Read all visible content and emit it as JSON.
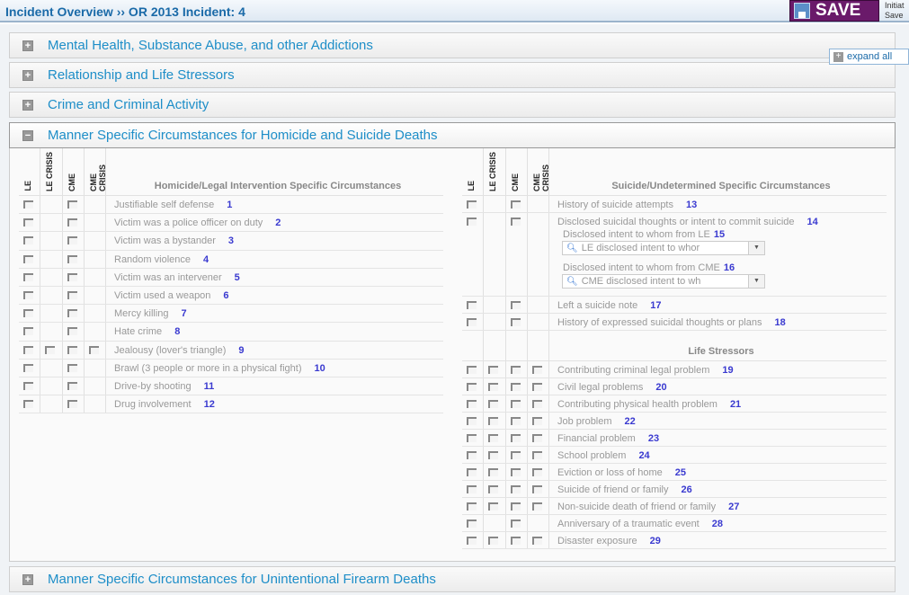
{
  "header": {
    "breadcrumb": "Incident Overview ›› OR 2013 Incident: 4",
    "save_label": "SAVE",
    "side_text": [
      "Initiat",
      "Save"
    ]
  },
  "expand_all": "expand all",
  "panels": [
    {
      "title": "Mental Health, Substance Abuse, and other Addictions",
      "state": "collapsed"
    },
    {
      "title": "Relationship and Life Stressors",
      "state": "collapsed"
    },
    {
      "title": "Crime and Criminal Activity",
      "state": "collapsed"
    },
    {
      "title": "Manner Specific Circumstances for Homicide and Suicide Deaths",
      "state": "expanded"
    },
    {
      "title": "Manner Specific Circumstances for Unintentional Firearm Deaths",
      "state": "collapsed"
    }
  ],
  "columns": [
    "LE",
    "LE CRISIS",
    "CME",
    "CME CRISIS"
  ],
  "homicide": {
    "title": "Homicide/Legal Intervention Specific Circumstances",
    "rows": [
      {
        "label": "Justifiable self defense",
        "num": "1",
        "boxes": [
          1,
          0,
          1,
          0
        ]
      },
      {
        "label": "Victim was a police officer on duty",
        "num": "2",
        "boxes": [
          1,
          0,
          1,
          0
        ]
      },
      {
        "label": "Victim was a bystander",
        "num": "3",
        "boxes": [
          1,
          0,
          1,
          0
        ]
      },
      {
        "label": "Random violence",
        "num": "4",
        "boxes": [
          1,
          0,
          1,
          0
        ]
      },
      {
        "label": "Victim was an intervener",
        "num": "5",
        "boxes": [
          1,
          0,
          1,
          0
        ]
      },
      {
        "label": "Victim used a weapon",
        "num": "6",
        "boxes": [
          1,
          0,
          1,
          0
        ]
      },
      {
        "label": "Mercy killing",
        "num": "7",
        "boxes": [
          1,
          0,
          1,
          0
        ]
      },
      {
        "label": "Hate crime",
        "num": "8",
        "boxes": [
          1,
          0,
          1,
          0
        ]
      },
      {
        "label": "Jealousy (lover's triangle)",
        "num": "9",
        "boxes": [
          1,
          1,
          1,
          1
        ]
      },
      {
        "label": "Brawl (3 people or more in a physical fight)",
        "num": "10",
        "boxes": [
          1,
          0,
          1,
          0
        ]
      },
      {
        "label": "Drive-by shooting",
        "num": "11",
        "boxes": [
          1,
          0,
          1,
          0
        ]
      },
      {
        "label": "Drug involvement",
        "num": "12",
        "boxes": [
          1,
          0,
          1,
          0
        ]
      }
    ]
  },
  "suicide": {
    "title": "Suicide/Undetermined Specific Circumstances",
    "rows": [
      {
        "label": "History of suicide attempts",
        "num": "13",
        "boxes": [
          1,
          0,
          1,
          0
        ]
      },
      {
        "label": "Disclosed suicidal thoughts or intent to commit suicide",
        "num": "14",
        "boxes": [
          1,
          0,
          1,
          0
        ],
        "subfields": [
          {
            "label": "Disclosed intent to whom from LE",
            "num": "15",
            "placeholder": "LE disclosed intent to whor"
          },
          {
            "label": "Disclosed intent to whom from CME",
            "num": "16",
            "placeholder": "CME disclosed intent to wh"
          }
        ]
      },
      {
        "label": "Left a suicide note",
        "num": "17",
        "boxes": [
          1,
          0,
          1,
          0
        ]
      },
      {
        "label": "History of expressed suicidal thoughts or plans",
        "num": "18",
        "boxes": [
          1,
          0,
          1,
          0
        ]
      }
    ]
  },
  "life_stressors": {
    "title": "Life Stressors",
    "rows": [
      {
        "label": "Contributing criminal legal problem",
        "num": "19",
        "boxes": [
          1,
          1,
          1,
          1
        ]
      },
      {
        "label": "Civil legal problems",
        "num": "20",
        "boxes": [
          1,
          1,
          1,
          1
        ]
      },
      {
        "label": "Contributing physical health problem",
        "num": "21",
        "boxes": [
          1,
          1,
          1,
          1
        ]
      },
      {
        "label": "Job problem",
        "num": "22",
        "boxes": [
          1,
          1,
          1,
          1
        ]
      },
      {
        "label": "Financial problem",
        "num": "23",
        "boxes": [
          1,
          1,
          1,
          1
        ]
      },
      {
        "label": "School problem",
        "num": "24",
        "boxes": [
          1,
          1,
          1,
          1
        ]
      },
      {
        "label": "Eviction or loss of home",
        "num": "25",
        "boxes": [
          1,
          1,
          1,
          1
        ]
      },
      {
        "label": "Suicide of friend or family",
        "num": "26",
        "boxes": [
          1,
          1,
          1,
          1
        ]
      },
      {
        "label": "Non-suicide death of friend or family",
        "num": "27",
        "boxes": [
          1,
          1,
          1,
          1
        ]
      },
      {
        "label": "Anniversary of a traumatic event",
        "num": "28",
        "boxes": [
          1,
          0,
          1,
          0
        ]
      },
      {
        "label": "Disaster exposure",
        "num": "29",
        "boxes": [
          1,
          1,
          1,
          1
        ]
      }
    ]
  }
}
